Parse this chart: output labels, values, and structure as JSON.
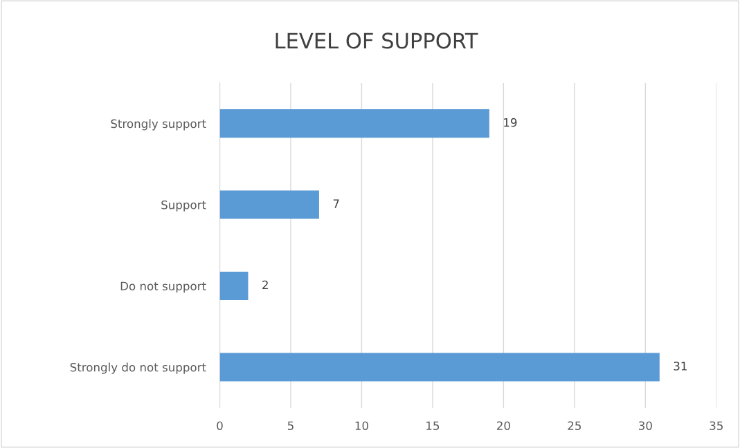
{
  "chart_data": {
    "type": "bar",
    "orientation": "horizontal",
    "title": "LEVEL OF SUPPORT",
    "categories": [
      "Strongly support",
      "Support",
      "Do not support",
      "Strongly do not support"
    ],
    "values": [
      19,
      7,
      2,
      31
    ],
    "color": "#5b9bd5",
    "xlim": [
      0,
      35
    ],
    "xticks": [
      0,
      5,
      10,
      15,
      20,
      25,
      30,
      35
    ],
    "grid": "x",
    "data_labels": true
  }
}
